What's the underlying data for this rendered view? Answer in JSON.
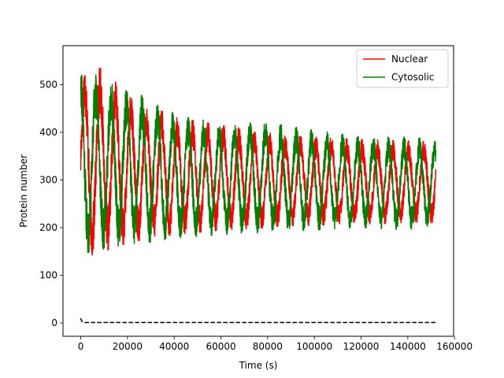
{
  "chart_data": {
    "type": "line",
    "xlabel": "Time (s)",
    "ylabel": "Protein number",
    "xlim": [
      -7600,
      159600
    ],
    "ylim": [
      -28,
      582
    ],
    "x_ticks": [
      0,
      20000,
      40000,
      60000,
      80000,
      100000,
      120000,
      140000,
      160000
    ],
    "y_ticks": [
      0,
      100,
      200,
      300,
      400,
      500
    ],
    "legend_position": "top-right",
    "grid": false,
    "series": [
      {
        "name": "Nuclear",
        "color": "#ff0000",
        "style": "solid",
        "x_range": [
          0,
          152000
        ],
        "period": 6600,
        "envelope": [
          {
            "x": 0,
            "max": 520,
            "min": 170
          },
          {
            "x": 3000,
            "max": 548,
            "min": 140
          },
          {
            "x": 10000,
            "max": 530,
            "min": 150
          },
          {
            "x": 20000,
            "max": 480,
            "min": 168
          },
          {
            "x": 30000,
            "max": 455,
            "min": 178
          },
          {
            "x": 40000,
            "max": 432,
            "min": 185
          },
          {
            "x": 60000,
            "max": 415,
            "min": 195
          },
          {
            "x": 80000,
            "max": 400,
            "min": 200
          },
          {
            "x": 100000,
            "max": 390,
            "min": 205
          },
          {
            "x": 120000,
            "max": 385,
            "min": 207
          },
          {
            "x": 140000,
            "max": 382,
            "min": 210
          },
          {
            "x": 152000,
            "max": 380,
            "min": 210
          }
        ]
      },
      {
        "name": "Cytosolic",
        "color": "#008000",
        "style": "solid",
        "x_range": [
          0,
          152000
        ],
        "period": 6600,
        "envelope": [
          {
            "x": 0,
            "max": 560,
            "min": 158
          },
          {
            "x": 3000,
            "max": 535,
            "min": 148
          },
          {
            "x": 10000,
            "max": 510,
            "min": 155
          },
          {
            "x": 20000,
            "max": 490,
            "min": 165
          },
          {
            "x": 30000,
            "max": 470,
            "min": 170
          },
          {
            "x": 40000,
            "max": 440,
            "min": 178
          },
          {
            "x": 60000,
            "max": 420,
            "min": 185
          },
          {
            "x": 80000,
            "max": 420,
            "min": 190
          },
          {
            "x": 100000,
            "max": 405,
            "min": 195
          },
          {
            "x": 120000,
            "max": 390,
            "min": 200
          },
          {
            "x": 140000,
            "max": 390,
            "min": 195
          },
          {
            "x": 152000,
            "max": 385,
            "min": 205
          }
        ]
      },
      {
        "color": "#000000",
        "style": "dashed",
        "points": [
          [
            0,
            10
          ],
          [
            200,
            6
          ],
          [
            600,
            3
          ],
          [
            1500,
            1
          ],
          [
            152000,
            1
          ]
        ]
      }
    ]
  }
}
